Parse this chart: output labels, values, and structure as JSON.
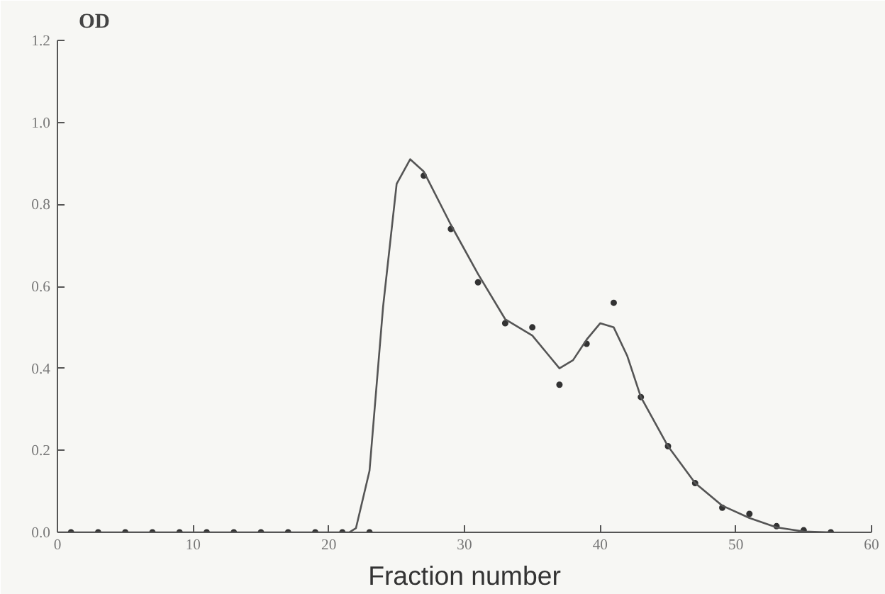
{
  "chart_data": {
    "type": "scatter",
    "ylabel": "OD",
    "xlabel": "Fraction number",
    "xlim": [
      0,
      60
    ],
    "ylim": [
      0,
      1.2
    ],
    "xticks": [
      0,
      10,
      20,
      30,
      40,
      50,
      60
    ],
    "yticks": [
      {
        "value": 0,
        "label": "0.0"
      },
      {
        "value": 0.2,
        "label": "0.2"
      },
      {
        "value": 0.4,
        "label": "0.4"
      },
      {
        "value": 0.6,
        "label": "0.6"
      },
      {
        "value": 0.8,
        "label": "0.8"
      },
      {
        "value": 1.0,
        "label": "1.0"
      },
      {
        "value": 1.2,
        "label": "1.2"
      }
    ],
    "grid": false,
    "series": [
      {
        "marker": "circle",
        "color": "#333333",
        "x": [
          1,
          3,
          5,
          7,
          9,
          11,
          13,
          15,
          17,
          19,
          21,
          23,
          27,
          29,
          31,
          33,
          35,
          37,
          39,
          41,
          43,
          45,
          47,
          49,
          51,
          53,
          55,
          57
        ],
        "values": [
          0,
          0,
          0,
          0,
          0,
          0,
          0,
          0,
          0,
          0,
          0,
          0,
          0.87,
          0.74,
          0.61,
          0.51,
          0.5,
          0.36,
          0.46,
          0.56,
          0.33,
          0.21,
          0.12,
          0.06,
          0.045,
          0.015,
          0.005,
          0
        ]
      },
      {
        "type": "line",
        "marker": "none",
        "color": "#555555",
        "x": [
          0,
          21.5,
          22,
          23,
          24,
          25,
          26,
          27,
          29,
          31,
          33,
          35,
          36,
          37,
          38,
          39,
          40,
          41,
          42,
          43,
          45,
          47,
          49,
          51,
          53,
          55,
          57
        ],
        "values": [
          0,
          0,
          0.01,
          0.15,
          0.55,
          0.85,
          0.91,
          0.88,
          0.75,
          0.63,
          0.52,
          0.48,
          0.44,
          0.4,
          0.42,
          0.47,
          0.51,
          0.5,
          0.43,
          0.33,
          0.21,
          0.12,
          0.065,
          0.035,
          0.012,
          0.002,
          0
        ]
      }
    ]
  }
}
